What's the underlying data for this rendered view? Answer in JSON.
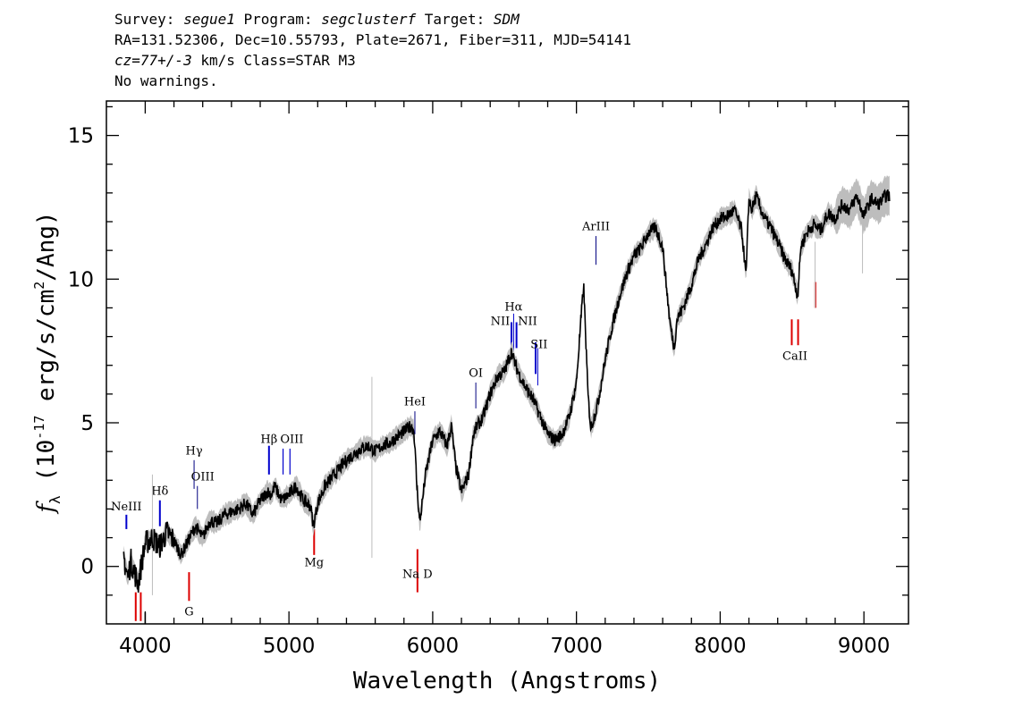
{
  "header": {
    "line1": {
      "survey_label": "Survey: ",
      "survey": "segue1",
      "program_label": " Program: ",
      "program": "segclusterf",
      "target_label": " Target: ",
      "target": "SDM"
    },
    "line2": "RA=131.52306, Dec=10.55793, Plate=2671, Fiber=311, MJD=54141",
    "line3": {
      "cz": "cz=77+/-3",
      "rest": " km/s Class=STAR M3"
    },
    "line4": "No warnings."
  },
  "colors": {
    "flux": "#000000",
    "error": "#bdbdbd",
    "emission": "#0000cc",
    "absorption": "#dd0000",
    "sky": "#000080"
  },
  "chart_data": {
    "type": "line",
    "xlabel": "Wavelength (Angstroms)",
    "ylabel": "f_λ (10^-17 erg/s/cm^2/Ang)",
    "xlim": [
      3730,
      9310
    ],
    "ylim": [
      -2,
      16.2
    ],
    "xticks": [
      4000,
      5000,
      6000,
      7000,
      8000,
      9000
    ],
    "yticks": [
      0,
      5,
      10,
      15
    ],
    "grid": false,
    "series": [
      {
        "x": [
          3850,
          3880,
          3900,
          3950,
          4000,
          4050,
          4100,
          4150,
          4200,
          4250,
          4300,
          4350,
          4400,
          4450,
          4500,
          4550,
          4600,
          4650,
          4700,
          4750,
          4800,
          4850,
          4880,
          4900,
          4950,
          5000,
          5050,
          5100,
          5150,
          5170,
          5200,
          5250,
          5300,
          5350,
          5400,
          5450,
          5500,
          5550,
          5600,
          5650,
          5700,
          5750,
          5800,
          5850,
          5870,
          5890,
          5910,
          5950,
          6000,
          6050,
          6100,
          6130,
          6160,
          6200,
          6250,
          6280,
          6300,
          6350,
          6400,
          6450,
          6500,
          6550,
          6563,
          6600,
          6650,
          6700,
          6750,
          6800,
          6850,
          6900,
          6950,
          7000,
          7030,
          7050,
          7080,
          7100,
          7150,
          7200,
          7250,
          7300,
          7350,
          7400,
          7450,
          7500,
          7550,
          7600,
          7650,
          7680,
          7700,
          7750,
          7800,
          7850,
          7900,
          7950,
          8000,
          8050,
          8100,
          8150,
          8180,
          8200,
          8220,
          8250,
          8300,
          8350,
          8400,
          8450,
          8500,
          8540,
          8560,
          8600,
          8650,
          8700,
          8750,
          8800,
          8850,
          8900,
          8950,
          9000,
          9050,
          9100,
          9150,
          9180
        ],
        "y": [
          0.3,
          -0.4,
          0.2,
          -0.6,
          0.8,
          1.0,
          0.7,
          1.2,
          0.9,
          0.4,
          0.9,
          1.4,
          1.0,
          1.6,
          1.5,
          1.8,
          1.9,
          2.0,
          2.2,
          1.8,
          2.3,
          2.6,
          2.5,
          2.8,
          2.3,
          2.5,
          2.8,
          2.3,
          2.1,
          1.4,
          2.2,
          2.8,
          3.1,
          3.4,
          3.7,
          3.9,
          4.1,
          4.2,
          4.0,
          4.2,
          4.3,
          4.5,
          4.7,
          4.9,
          4.7,
          2.8,
          1.5,
          3.2,
          4.4,
          4.7,
          4.2,
          4.9,
          3.5,
          2.6,
          3.2,
          4.5,
          4.8,
          5.2,
          6.0,
          6.6,
          6.8,
          7.5,
          7.2,
          6.7,
          6.2,
          5.8,
          5.2,
          4.6,
          4.4,
          4.6,
          5.2,
          6.4,
          8.5,
          9.8,
          6.0,
          4.8,
          5.7,
          7.2,
          8.4,
          9.4,
          10.2,
          10.8,
          11.1,
          11.6,
          11.8,
          11.1,
          8.5,
          7.6,
          8.6,
          9.1,
          9.8,
          10.7,
          11.2,
          11.8,
          12.1,
          12.2,
          12.4,
          11.7,
          10.1,
          12.8,
          12.4,
          12.9,
          12.2,
          11.8,
          11.3,
          10.7,
          10.3,
          9.4,
          11.1,
          11.6,
          11.9,
          11.7,
          12.3,
          12.1,
          12.6,
          12.4,
          12.9,
          12.2,
          12.8,
          12.6,
          12.9,
          12.9
        ]
      }
    ],
    "lines": {
      "emission": [
        {
          "label": "NeIII",
          "wave": 3869
        },
        {
          "label": "Hδ",
          "wave": 4102
        },
        {
          "label": "Hγ",
          "wave": 4340
        },
        {
          "label": "OIII",
          "wave": 4363
        },
        {
          "label": "Hβ",
          "wave": 4861
        },
        {
          "label": "OIII",
          "wave": 4959
        },
        {
          "label": "OIII",
          "wave": 5007
        },
        {
          "label": "HeI",
          "wave": 5876
        },
        {
          "label": "OI",
          "wave": 6300
        },
        {
          "label": "NII",
          "wave": 6548
        },
        {
          "label": "Hα",
          "wave": 6563
        },
        {
          "label": "NII",
          "wave": 6583
        },
        {
          "label": "SII",
          "wave": 6716
        },
        {
          "label": "SII",
          "wave": 6731
        },
        {
          "label": "ArIII",
          "wave": 7136
        }
      ],
      "absorption": [
        {
          "label": "",
          "wave": 3934
        },
        {
          "label": "",
          "wave": 3969
        },
        {
          "label": "G",
          "wave": 4305
        },
        {
          "label": "Mg",
          "wave": 5175
        },
        {
          "label": "Na D",
          "wave": 5894
        },
        {
          "label": "CaII",
          "wave": 8498
        },
        {
          "label": "CaII",
          "wave": 8542
        },
        {
          "label": "",
          "wave": 8662
        }
      ]
    }
  }
}
